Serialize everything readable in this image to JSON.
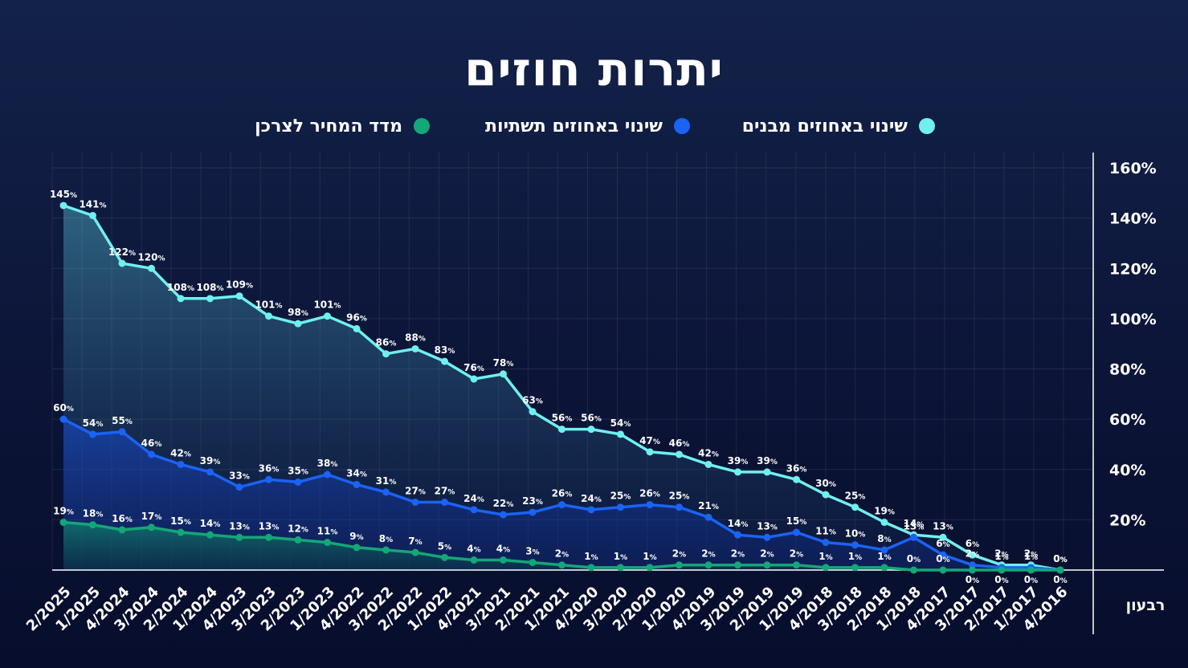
{
  "colors": {
    "background": "#0c1538",
    "series": [
      "#6ff0ee",
      "#1a63f5",
      "#14a777"
    ]
  },
  "chart_data": {
    "type": "line",
    "title": "יתרות חוזים",
    "xlabel": "רבעון",
    "ylabel": "",
    "ylim": [
      0,
      160
    ],
    "y_ticks": [
      "20%",
      "40%",
      "60%",
      "80%",
      "100%",
      "120%",
      "140%",
      "160%"
    ],
    "grid": true,
    "legend_position": "top",
    "categories": [
      "2/2025",
      "1/2025",
      "4/2024",
      "3/2024",
      "2/2024",
      "1/2024",
      "4/2023",
      "3/2023",
      "2/2023",
      "1/2023",
      "4/2022",
      "3/2022",
      "2/2022",
      "1/2022",
      "4/2021",
      "3/2021",
      "2/2021",
      "1/2021",
      "4/2020",
      "3/2020",
      "2/2020",
      "1/2020",
      "4/2019",
      "3/2019",
      "2/2019",
      "1/2019",
      "4/2018",
      "3/2018",
      "2/2018",
      "1/2018",
      "4/2017",
      "3/2017",
      "2/2017",
      "1/2017",
      "4/2016"
    ],
    "series": [
      {
        "name": "שינוי באחוזים מבנים",
        "color": "#6ff0ee",
        "values": [
          145,
          141,
          122,
          120,
          108,
          108,
          109,
          101,
          98,
          101,
          96,
          86,
          88,
          83,
          76,
          78,
          63,
          56,
          56,
          54,
          47,
          46,
          42,
          39,
          39,
          36,
          30,
          25,
          19,
          14,
          13,
          6,
          2,
          2,
          0
        ]
      },
      {
        "name": "שינוי באחוזים תשתיות",
        "color": "#1a63f5",
        "values": [
          60,
          54,
          55,
          46,
          42,
          39,
          33,
          36,
          35,
          38,
          34,
          31,
          27,
          27,
          24,
          22,
          23,
          26,
          24,
          25,
          26,
          25,
          21,
          14,
          13,
          15,
          11,
          10,
          8,
          13,
          6,
          2,
          1,
          1,
          0
        ]
      },
      {
        "name": "מדד המחיר לצרכן",
        "color": "#14a777",
        "values": [
          19,
          18,
          16,
          17,
          15,
          14,
          13,
          13,
          12,
          11,
          9,
          8,
          7,
          5,
          4,
          4,
          3,
          2,
          1,
          1,
          1,
          2,
          2,
          2,
          2,
          2,
          1,
          1,
          1,
          0,
          0,
          0,
          0,
          0,
          0
        ]
      }
    ]
  }
}
